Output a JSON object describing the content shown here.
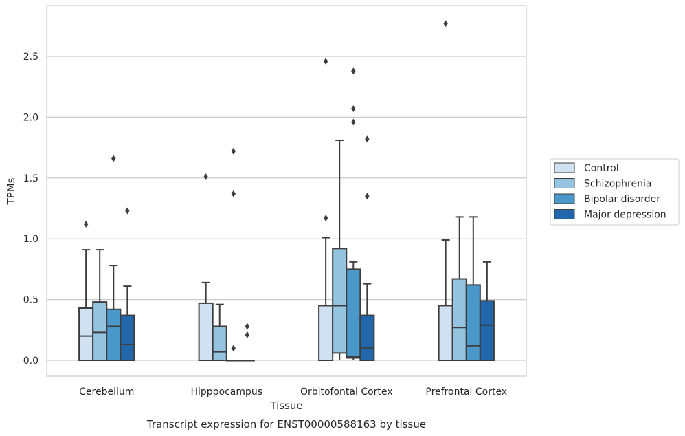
{
  "chart_data": {
    "type": "boxplot",
    "caption": "Transcript expression for ENST00000588163 by tissue",
    "xlabel": "Tissue",
    "ylabel": "TPMs",
    "ylim": [
      -0.13,
      2.9
    ],
    "yticks": [
      0.0,
      0.5,
      1.0,
      1.5,
      2.0,
      2.5
    ],
    "ytick_labels": [
      "0.0",
      "0.5",
      "1.0",
      "1.5",
      "2.0",
      "2.5"
    ],
    "grid": "horizontal",
    "legend_position": "right",
    "categories": [
      "Cerebellum",
      "Hipppocampus",
      "Orbitofontal Cortex",
      "Prefrontal Cortex"
    ],
    "series": [
      {
        "name": "Control",
        "color": "#d0e1f2",
        "boxes": [
          {
            "whislo": 0.0,
            "q1": 0.0,
            "med": 0.2,
            "q3": 0.43,
            "whishi": 0.91,
            "fliers": [
              1.12
            ]
          },
          {
            "whislo": 0.0,
            "q1": 0.0,
            "med": 0.0,
            "q3": 0.47,
            "whishi": 0.64,
            "fliers": [
              1.51
            ]
          },
          {
            "whislo": 0.0,
            "q1": 0.0,
            "med": 0.0,
            "q3": 0.45,
            "whishi": 1.01,
            "fliers": [
              1.17,
              2.46
            ]
          },
          {
            "whislo": 0.0,
            "q1": 0.0,
            "med": 0.0,
            "q3": 0.45,
            "whishi": 0.99,
            "fliers": [
              2.77
            ]
          }
        ]
      },
      {
        "name": "Schizophrenia",
        "color": "#94c4df",
        "boxes": [
          {
            "whislo": 0.0,
            "q1": 0.0,
            "med": 0.23,
            "q3": 0.48,
            "whishi": 0.91,
            "fliers": []
          },
          {
            "whislo": 0.0,
            "q1": 0.0,
            "med": 0.07,
            "q3": 0.28,
            "whishi": 0.46,
            "fliers": []
          },
          {
            "whislo": 0.0,
            "q1": 0.06,
            "med": 0.45,
            "q3": 0.92,
            "whishi": 1.81,
            "fliers": []
          },
          {
            "whislo": 0.0,
            "q1": 0.0,
            "med": 0.27,
            "q3": 0.67,
            "whishi": 1.18,
            "fliers": []
          }
        ]
      },
      {
        "name": "Bipolar disorder",
        "color": "#4a98c9",
        "boxes": [
          {
            "whislo": 0.0,
            "q1": 0.0,
            "med": 0.28,
            "q3": 0.42,
            "whishi": 0.78,
            "fliers": [
              1.66
            ]
          },
          {
            "whislo": 0.0,
            "q1": 0.0,
            "med": 0.0,
            "q3": 0.0,
            "whishi": 0.0,
            "fliers": [
              0.1,
              1.37,
              1.72
            ]
          },
          {
            "whislo": 0.0,
            "q1": 0.02,
            "med": 0.03,
            "q3": 0.75,
            "whishi": 0.81,
            "fliers": [
              1.96,
              2.07,
              2.38
            ]
          },
          {
            "whislo": 0.0,
            "q1": 0.0,
            "med": 0.12,
            "q3": 0.62,
            "whishi": 1.18,
            "fliers": []
          }
        ]
      },
      {
        "name": "Major depression",
        "color": "#2266ac",
        "boxes": [
          {
            "whislo": 0.0,
            "q1": 0.0,
            "med": 0.13,
            "q3": 0.37,
            "whishi": 0.61,
            "fliers": [
              1.23
            ]
          },
          {
            "whislo": 0.0,
            "q1": 0.0,
            "med": 0.0,
            "q3": 0.0,
            "whishi": 0.0,
            "fliers": [
              0.21,
              0.28
            ]
          },
          {
            "whislo": 0.0,
            "q1": 0.0,
            "med": 0.1,
            "q3": 0.37,
            "whishi": 0.63,
            "fliers": [
              1.35,
              1.82
            ]
          },
          {
            "whislo": 0.0,
            "q1": 0.0,
            "med": 0.29,
            "q3": 0.49,
            "whishi": 0.81,
            "fliers": []
          }
        ]
      }
    ]
  }
}
